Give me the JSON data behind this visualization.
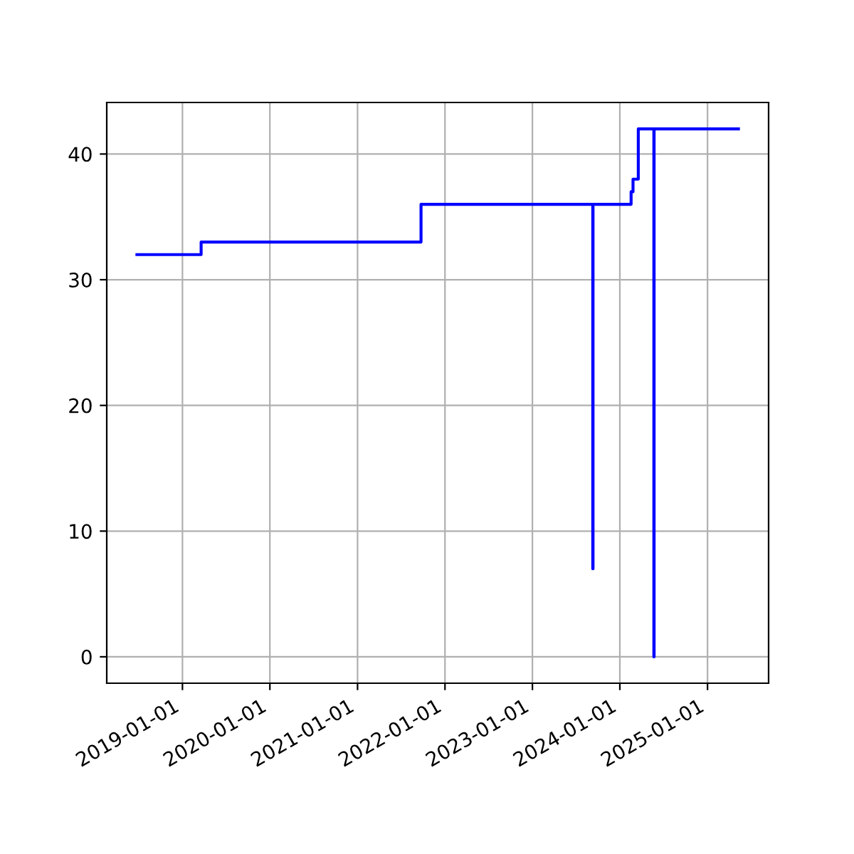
{
  "chart_data": {
    "type": "step",
    "x": [
      "2018-06-25",
      "2019-03-20",
      "2021-09-23",
      "2023-09-10",
      "2023-09-11",
      "2024-02-17",
      "2024-02-25",
      "2024-03-18",
      "2024-05-22",
      "2024-05-23",
      "2025-05-10"
    ],
    "series": [
      {
        "color": "#0000ff",
        "values": [
          32,
          33,
          36,
          7,
          36,
          37,
          38,
          42,
          0,
          42,
          42
        ]
      }
    ],
    "xlim": [
      "2018-02-19",
      "2025-09-13"
    ],
    "xticks": [
      "2019-01-01",
      "2020-01-01",
      "2021-01-01",
      "2022-01-01",
      "2023-01-01",
      "2024-01-01",
      "2025-01-01"
    ],
    "ylim": [
      -2.1,
      44.1
    ],
    "yticks": [
      0,
      10,
      20,
      30,
      40
    ],
    "grid": true,
    "legend": false
  }
}
